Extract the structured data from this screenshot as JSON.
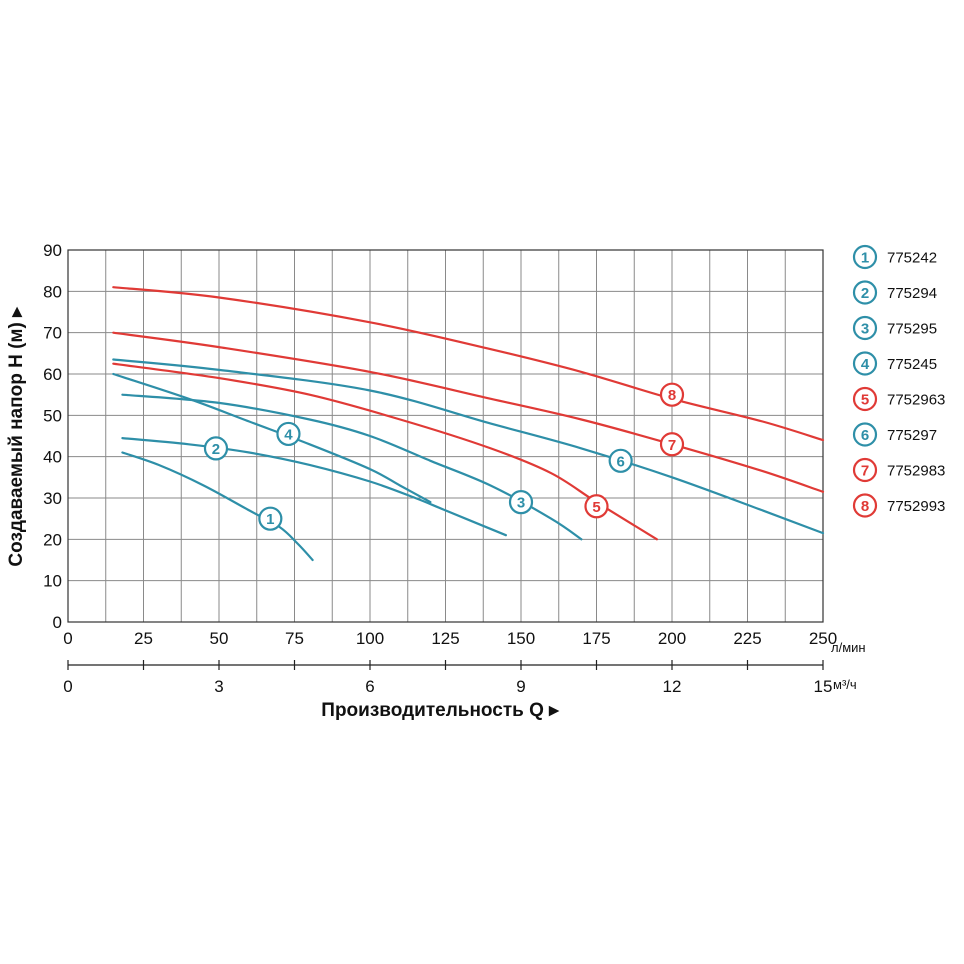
{
  "chart_data": {
    "type": "line",
    "title": "",
    "ylabel": "Создаваемый напор Н (м) ▸",
    "xlabel": "Производительность Q ▸",
    "ylim": [
      0,
      90
    ],
    "xlim": [
      0,
      250
    ],
    "grid": true,
    "y_ticks": [
      "0",
      "10",
      "20",
      "30",
      "40",
      "50",
      "60",
      "70",
      "80",
      "90"
    ],
    "x_ticks_lmin": [
      "0",
      "25",
      "50",
      "75",
      "100",
      "125",
      "150",
      "175",
      "200",
      "225",
      "250"
    ],
    "x_unit_lmin": "л/мин",
    "x_ticks_m3h": [
      "0",
      "3",
      "6",
      "9",
      "12",
      "15"
    ],
    "x_unit_m3h": "м³/ч",
    "legend_position": "right",
    "colors": {
      "teal": "#2E8FA8",
      "red": "#E03A36",
      "grid": "#8a8a8a"
    },
    "series": [
      {
        "id": "1",
        "name": "775242",
        "color": "teal",
        "label_at": [
          67,
          25
        ],
        "x": [
          18,
          30,
          45,
          60,
          70,
          76,
          81
        ],
        "y": [
          41,
          38,
          33,
          27,
          23,
          19,
          15
        ]
      },
      {
        "id": "2",
        "name": "775294",
        "color": "teal",
        "label_at": [
          49,
          42
        ],
        "x": [
          18,
          40,
          60,
          80,
          100,
          115,
          125,
          145
        ],
        "y": [
          44.5,
          43,
          41,
          38,
          34,
          30,
          27,
          21
        ]
      },
      {
        "id": "3",
        "name": "775295",
        "color": "teal",
        "label_at": [
          150,
          29
        ],
        "x": [
          18,
          50,
          80,
          100,
          120,
          140,
          160,
          170
        ],
        "y": [
          55,
          53,
          49,
          45,
          39,
          33,
          25,
          20
        ]
      },
      {
        "id": "4",
        "name": "775245",
        "color": "teal",
        "label_at": [
          73,
          45.5
        ],
        "x": [
          15,
          40,
          60,
          80,
          100,
          110,
          120
        ],
        "y": [
          60,
          54,
          48.5,
          43,
          37,
          33,
          29
        ]
      },
      {
        "id": "5",
        "name": "7752963",
        "color": "red",
        "label_at": [
          175,
          28
        ],
        "x": [
          15,
          50,
          80,
          110,
          140,
          160,
          175,
          195
        ],
        "y": [
          62.5,
          59,
          55,
          49,
          42,
          36,
          29,
          20
        ]
      },
      {
        "id": "6",
        "name": "775297",
        "color": "teal",
        "label_at": [
          183,
          39
        ],
        "x": [
          15,
          50,
          100,
          140,
          170,
          200,
          230,
          250
        ],
        "y": [
          63.5,
          61,
          56,
          48,
          42,
          35,
          27,
          21.5
        ]
      },
      {
        "id": "7",
        "name": "7752983",
        "color": "red",
        "label_at": [
          200,
          43
        ],
        "x": [
          15,
          50,
          100,
          140,
          170,
          200,
          230,
          250
        ],
        "y": [
          70,
          66.5,
          60.5,
          54,
          49,
          43,
          36.5,
          31.5
        ]
      },
      {
        "id": "8",
        "name": "7752993",
        "color": "red",
        "label_at": [
          200,
          55
        ],
        "x": [
          15,
          50,
          100,
          140,
          170,
          200,
          230,
          250
        ],
        "y": [
          81,
          78.5,
          72.5,
          66,
          60.5,
          54,
          48.5,
          44
        ]
      }
    ]
  }
}
